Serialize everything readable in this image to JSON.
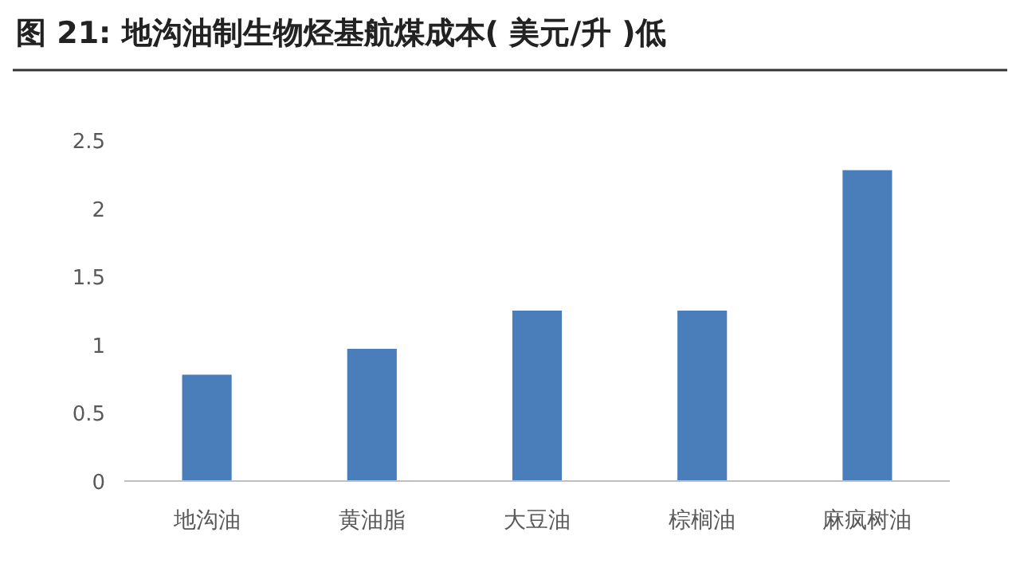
{
  "chart_data": {
    "type": "bar",
    "title": "图 21: 地沟油制生物烃基航煤成本( 美元/升 )低",
    "categories": [
      "地沟油",
      "黄油脂",
      "大豆油",
      "棕榈油",
      "麻疯树油"
    ],
    "values": [
      0.78,
      0.97,
      1.25,
      1.25,
      2.28
    ],
    "color": "#4a7ebb",
    "ylim": [
      0,
      2.5
    ],
    "yticks": [
      0,
      0.5,
      1,
      1.5,
      2,
      2.5
    ],
    "grid": false
  }
}
